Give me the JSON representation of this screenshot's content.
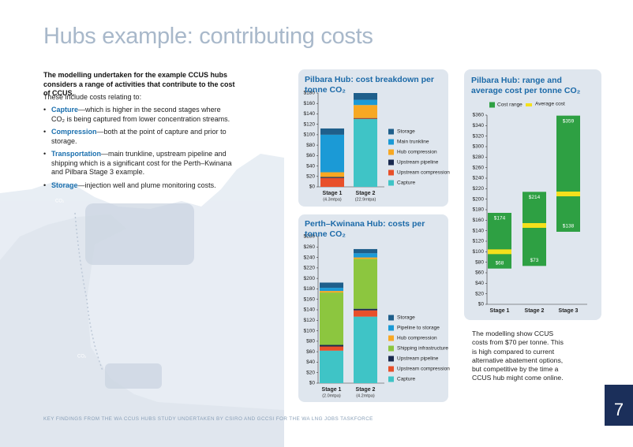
{
  "header": {
    "title": "Hubs example: contributing costs"
  },
  "intro": "The modelling undertaken for the example CCUS hubs considers a range of activities that contribute to the cost of CCUS.",
  "lead": "These include costs relating to:",
  "bullets": [
    {
      "term": "Capture",
      "text": "—which is higher in the second stages where CO₂ is being captured from lower concentration streams."
    },
    {
      "term": "Compression",
      "text": "—both at the point of capture and prior to storage."
    },
    {
      "term": "Transportation",
      "text": "—main trunkline, upstream pipeline and shipping which is a significant cost for the Perth–Kwinana and Pilbara Stage 3 example."
    },
    {
      "term": "Storage",
      "text": "—injection well and plume monitoring costs."
    }
  ],
  "map_labels": [
    "CO₂",
    "CO₂"
  ],
  "note": "The modelling show CCUS costs from $70 per tonne. This is high compared to current alternative abatement options, but competitive by the time a CCUS hub might come online.",
  "footer": "KEY FINDINGS FROM THE WA CCUS HUBS STUDY UNDERTAKEN BY CSIRO AND GCCSI FOR THE WA LNG JOBS TASKFORCE",
  "page_number": "7",
  "chart_data": [
    {
      "type": "stacked_bar",
      "title": "Pilbara Hub: cost breakdown per tonne CO₂",
      "categories": [
        "Stage 1",
        "Stage 2"
      ],
      "category_notes": [
        "(4.3mtpa)",
        "(22.9mtpa)"
      ],
      "ylim": [
        0,
        180
      ],
      "yticks": [
        {
          "value": 0,
          "label": "$0"
        },
        {
          "value": 20,
          "label": "$20"
        },
        {
          "value": 40,
          "label": "$40"
        },
        {
          "value": 60,
          "label": "$60"
        },
        {
          "value": 80,
          "label": "$80"
        },
        {
          "value": 100,
          "label": "$100"
        },
        {
          "value": 120,
          "label": "$120"
        },
        {
          "value": 140,
          "label": "$140"
        },
        {
          "value": 160,
          "label": "$160"
        },
        {
          "value": 180,
          "label": "$180"
        }
      ],
      "series": [
        {
          "name": "Capture",
          "color": "#3fc4c6",
          "values": [
            0,
            130
          ]
        },
        {
          "name": "Upstream compression",
          "color": "#e8502a",
          "values": [
            17,
            1
          ]
        },
        {
          "name": "Upstream pipeline",
          "color": "#1a2a4f",
          "values": [
            2,
            1
          ]
        },
        {
          "name": "Hub compression",
          "color": "#f7a823",
          "values": [
            9,
            25
          ]
        },
        {
          "name": "Main trunkline",
          "color": "#1b9ad6",
          "values": [
            72,
            10
          ]
        },
        {
          "name": "Storage",
          "color": "#1f5f8b",
          "values": [
            12,
            13
          ]
        }
      ]
    },
    {
      "type": "stacked_bar",
      "title": "Perth–Kwinana Hub: costs per tonne CO₂",
      "categories": [
        "Stage 1",
        "Stage 2"
      ],
      "category_notes": [
        "(2.0mtpa)",
        "(4.2mtpa)"
      ],
      "ylim": [
        0,
        280
      ],
      "yticks": [
        {
          "value": 0,
          "label": "$0"
        },
        {
          "value": 20,
          "label": "$20"
        },
        {
          "value": 40,
          "label": "$40"
        },
        {
          "value": 60,
          "label": "$60"
        },
        {
          "value": 80,
          "label": "$80"
        },
        {
          "value": 100,
          "label": "$100"
        },
        {
          "value": 120,
          "label": "$120"
        },
        {
          "value": 140,
          "label": "$140"
        },
        {
          "value": 160,
          "label": "$160"
        },
        {
          "value": 180,
          "label": "$180"
        },
        {
          "value": 200,
          "label": "$200"
        },
        {
          "value": 220,
          "label": "$220"
        },
        {
          "value": 240,
          "label": "$240"
        },
        {
          "value": 260,
          "label": "$260"
        },
        {
          "value": 280,
          "label": "$280"
        }
      ],
      "series": [
        {
          "name": "Capture",
          "color": "#3fc4c6",
          "values": [
            62,
            127
          ]
        },
        {
          "name": "Upstream compression",
          "color": "#e8502a",
          "values": [
            8,
            12
          ]
        },
        {
          "name": "Upstream pipeline",
          "color": "#1a2a4f",
          "values": [
            3,
            3
          ]
        },
        {
          "name": "Shipping infrastructure",
          "color": "#8cc63f",
          "values": [
            100,
            95
          ]
        },
        {
          "name": "Hub compression",
          "color": "#f7a823",
          "values": [
            3,
            3
          ]
        },
        {
          "name": "Pipeline to storage",
          "color": "#1b9ad6",
          "values": [
            6,
            8
          ]
        },
        {
          "name": "Storage",
          "color": "#1f5f8b",
          "values": [
            10,
            8
          ]
        }
      ]
    },
    {
      "type": "range",
      "title": "Pilbara Hub: range and average cost per tonne CO₂",
      "categories": [
        "Stage 1",
        "Stage 2",
        "Stage 3"
      ],
      "ylim": [
        0,
        360
      ],
      "yticks": [
        {
          "value": 0,
          "label": "$0"
        },
        {
          "value": 20,
          "label": "$20"
        },
        {
          "value": 40,
          "label": "$40"
        },
        {
          "value": 60,
          "label": "$60"
        },
        {
          "value": 80,
          "label": "$80"
        },
        {
          "value": 100,
          "label": "$100"
        },
        {
          "value": 120,
          "label": "$120"
        },
        {
          "value": 140,
          "label": "$140"
        },
        {
          "value": 160,
          "label": "$160"
        },
        {
          "value": 180,
          "label": "$180"
        },
        {
          "value": 200,
          "label": "$200"
        },
        {
          "value": 220,
          "label": "$220"
        },
        {
          "value": 240,
          "label": "$240"
        },
        {
          "value": 260,
          "label": "$260"
        },
        {
          "value": 280,
          "label": "$280"
        },
        {
          "value": 300,
          "label": "$300"
        },
        {
          "value": 320,
          "label": "$320"
        },
        {
          "value": 340,
          "label": "$340"
        },
        {
          "value": 360,
          "label": "$360"
        }
      ],
      "series": [
        {
          "name": "Cost range",
          "color": "#2ea043",
          "low": [
            68,
            73,
            138
          ],
          "high": [
            174,
            214,
            359
          ],
          "low_labels": [
            "$68",
            "$73",
            "$138"
          ],
          "high_labels": [
            "$174",
            "$214",
            "$359"
          ]
        },
        {
          "name": "Average cost",
          "color": "#f4e01c",
          "values": [
            100,
            150,
            210
          ]
        }
      ]
    }
  ]
}
